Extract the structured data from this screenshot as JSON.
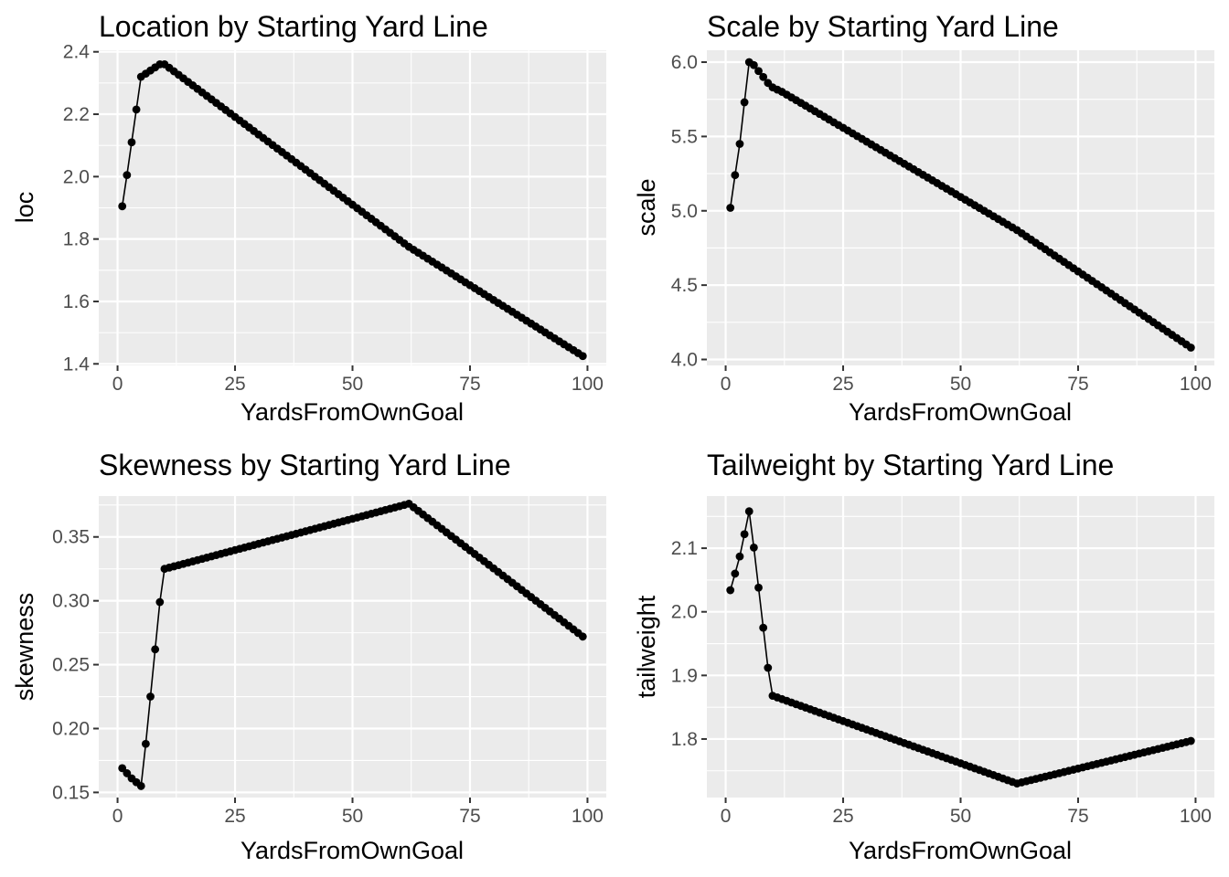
{
  "chart_data": [
    {
      "type": "line",
      "title": "Location by Starting Yard Line",
      "xlabel": "YardsFromOwnGoal",
      "ylabel": "loc",
      "xlim": [
        -4,
        104
      ],
      "ylim": [
        1.395,
        2.405
      ],
      "x_ticks": [
        0,
        25,
        50,
        75,
        100
      ],
      "x_tick_labels": [
        "0",
        "25",
        "50",
        "75",
        "100"
      ],
      "y_ticks": [
        1.4,
        1.6,
        1.8,
        2.0,
        2.2,
        2.4
      ],
      "y_tick_labels": [
        "1.4",
        "1.6",
        "1.8",
        "2.0",
        "2.2",
        "2.4"
      ],
      "grid": true,
      "markers": true,
      "series": [
        {
          "x": [
            1,
            2,
            3,
            4,
            5,
            6,
            7,
            8,
            9,
            10,
            62,
            99
          ],
          "y": [
            1.905,
            2.005,
            2.11,
            2.215,
            2.32,
            2.33,
            2.34,
            2.35,
            2.36,
            2.36,
            1.775,
            1.425
          ]
        }
      ]
    },
    {
      "type": "line",
      "title": "Scale by Starting Yard Line",
      "xlabel": "YardsFromOwnGoal",
      "ylabel": "scale",
      "xlim": [
        -4,
        104
      ],
      "ylim": [
        3.96,
        6.08
      ],
      "x_ticks": [
        0,
        25,
        50,
        75,
        100
      ],
      "x_tick_labels": [
        "0",
        "25",
        "50",
        "75",
        "100"
      ],
      "y_ticks": [
        4.0,
        4.5,
        5.0,
        5.5,
        6.0
      ],
      "y_tick_labels": [
        "4.0",
        "4.5",
        "5.0",
        "5.5",
        "6.0"
      ],
      "grid": true,
      "markers": true,
      "series": [
        {
          "x": [
            1,
            2,
            3,
            4,
            5,
            6,
            7,
            8,
            9,
            10,
            12,
            62,
            99
          ],
          "y": [
            5.02,
            5.24,
            5.45,
            5.73,
            6.0,
            5.98,
            5.94,
            5.9,
            5.86,
            5.83,
            5.8,
            4.87,
            4.08
          ]
        }
      ]
    },
    {
      "type": "line",
      "title": "Skewness by Starting Yard Line",
      "xlabel": "YardsFromOwnGoal",
      "ylabel": "skewness",
      "xlim": [
        -4,
        104
      ],
      "ylim": [
        0.146,
        0.382
      ],
      "x_ticks": [
        0,
        25,
        50,
        75,
        100
      ],
      "x_tick_labels": [
        "0",
        "25",
        "50",
        "75",
        "100"
      ],
      "y_ticks": [
        0.15,
        0.2,
        0.25,
        0.3,
        0.35
      ],
      "y_tick_labels": [
        "0.15",
        "0.20",
        "0.25",
        "0.30",
        "0.35"
      ],
      "grid": true,
      "markers": true,
      "series": [
        {
          "x": [
            1,
            2,
            3,
            4,
            5,
            6,
            7,
            8,
            9,
            10,
            62,
            99
          ],
          "y": [
            0.169,
            0.165,
            0.161,
            0.158,
            0.155,
            0.188,
            0.225,
            0.262,
            0.299,
            0.325,
            0.376,
            0.272
          ]
        }
      ]
    },
    {
      "type": "line",
      "title": "Tailweight by Starting Yard Line",
      "xlabel": "YardsFromOwnGoal",
      "ylabel": "tailweight",
      "xlim": [
        -4,
        104
      ],
      "ylim": [
        1.708,
        2.182
      ],
      "x_ticks": [
        0,
        25,
        50,
        75,
        100
      ],
      "x_tick_labels": [
        "0",
        "25",
        "50",
        "75",
        "100"
      ],
      "y_ticks": [
        1.8,
        1.9,
        2.0,
        2.1
      ],
      "y_tick_labels": [
        "1.8",
        "1.9",
        "2.0",
        "2.1"
      ],
      "grid": true,
      "markers": true,
      "series": [
        {
          "x": [
            1,
            2,
            3,
            4,
            5,
            6,
            7,
            8,
            9,
            10,
            62,
            99
          ],
          "y": [
            2.034,
            2.06,
            2.087,
            2.122,
            2.158,
            2.101,
            2.038,
            1.975,
            1.912,
            1.868,
            1.73,
            1.797
          ]
        }
      ]
    }
  ]
}
